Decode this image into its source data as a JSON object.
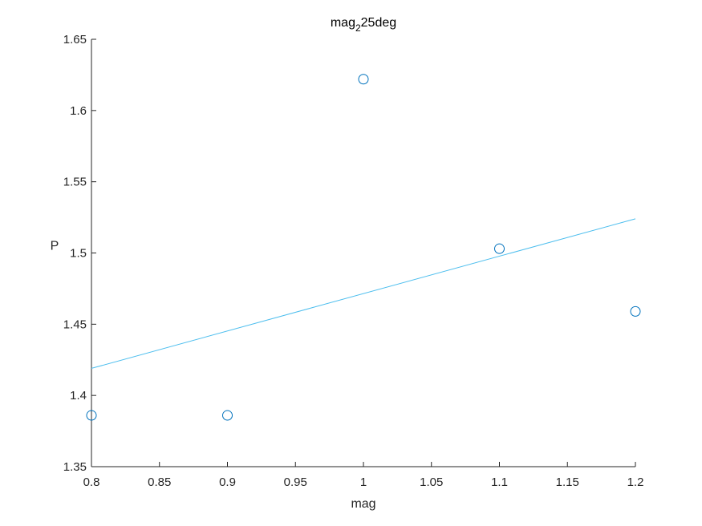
{
  "chart_data": {
    "type": "scatter",
    "title": "mag",
    "title_subscript": "2",
    "title_suffix": "25deg",
    "xlabel": "mag",
    "ylabel": "P",
    "xlim": [
      0.8,
      1.2
    ],
    "ylim": [
      1.35,
      1.65
    ],
    "xticks": [
      0.8,
      0.85,
      0.9,
      0.95,
      1,
      1.05,
      1.1,
      1.15,
      1.2
    ],
    "xtick_labels": [
      "0.8",
      "0.85",
      "0.9",
      "0.95",
      "1",
      "1.05",
      "1.1",
      "1.15",
      "1.2"
    ],
    "yticks": [
      1.35,
      1.4,
      1.45,
      1.5,
      1.55,
      1.6,
      1.65
    ],
    "ytick_labels": [
      "1.35",
      "1.4",
      "1.45",
      "1.5",
      "1.55",
      "1.6",
      "1.65"
    ],
    "grid": false,
    "series": [
      {
        "type": "scatter",
        "marker": "circle-open",
        "color": "#0072BD",
        "x": [
          0.8,
          0.9,
          1.0,
          1.1,
          1.2
        ],
        "y": [
          1.386,
          1.386,
          1.622,
          1.503,
          1.459
        ]
      },
      {
        "type": "line",
        "color": "#4DBEEE",
        "x": [
          0.8,
          1.2
        ],
        "y": [
          1.419,
          1.524
        ]
      }
    ]
  }
}
